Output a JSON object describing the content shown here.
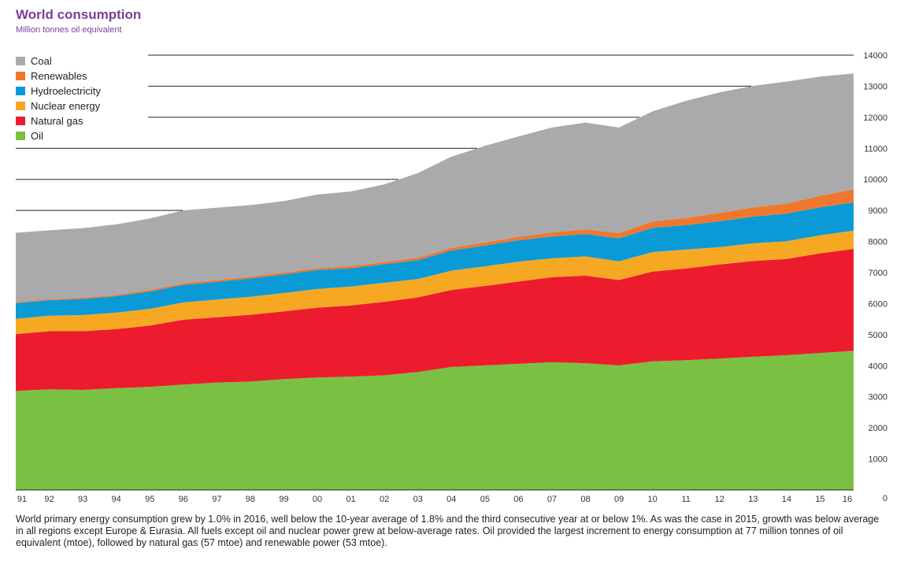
{
  "title": "World consumption",
  "subtitle": "Million tonnes oil equivalent",
  "caption": "World primary energy consumption grew by 1.0% in 2016, well below the 10-year average of 1.8% and the third consecutive year at or below 1%. As was the case in 2015, growth was below average in all regions except Europe & Eurasia. All fuels except oil and nuclear power grew at below-average rates. Oil provided the largest increment to energy consumption at 77 million tonnes of oil equivalent (mtoe), followed by natural gas (57 mtoe) and renewable power (53 mtoe).",
  "chart_data": {
    "type": "area",
    "stacked": true,
    "x": [
      "91",
      "92",
      "93",
      "94",
      "95",
      "96",
      "97",
      "98",
      "99",
      "00",
      "01",
      "02",
      "03",
      "04",
      "05",
      "06",
      "07",
      "08",
      "09",
      "10",
      "11",
      "12",
      "13",
      "14",
      "15",
      "16"
    ],
    "y_ticks": [
      "0",
      "1000",
      "2000",
      "3000",
      "4000",
      "5000",
      "6000",
      "7000",
      "8000",
      "9000",
      "10000",
      "11000",
      "12000",
      "13000",
      "14000"
    ],
    "ylim": [
      0,
      14000
    ],
    "y_axis_side": "right",
    "legend_position": "top-left",
    "series": [
      {
        "name": "Oil",
        "color": "#7ac143",
        "values": [
          3190,
          3240,
          3220,
          3280,
          3320,
          3390,
          3460,
          3490,
          3570,
          3620,
          3650,
          3690,
          3800,
          3960,
          4010,
          4060,
          4110,
          4080,
          4010,
          4140,
          4180,
          4230,
          4290,
          4340,
          4410,
          4480
        ]
      },
      {
        "name": "Natural gas",
        "color": "#ec1c2e",
        "values": [
          1830,
          1870,
          1890,
          1900,
          1970,
          2090,
          2100,
          2150,
          2180,
          2250,
          2290,
          2370,
          2400,
          2480,
          2560,
          2650,
          2740,
          2820,
          2750,
          2890,
          2950,
          3030,
          3080,
          3100,
          3210,
          3280
        ]
      },
      {
        "name": "Nuclear energy",
        "color": "#f7a823",
        "values": [
          490,
          500,
          520,
          530,
          540,
          560,
          570,
          580,
          590,
          600,
          610,
          610,
          590,
          620,
          630,
          640,
          610,
          620,
          600,
          630,
          610,
          560,
          570,
          570,
          580,
          590
        ]
      },
      {
        "name": "Hydroelectricity",
        "color": "#0a9bd7",
        "values": [
          500,
          500,
          520,
          530,
          560,
          560,
          570,
          590,
          600,
          610,
          590,
          600,
          610,
          650,
          670,
          690,
          700,
          720,
          740,
          780,
          790,
          830,
          860,
          890,
          900,
          910
        ]
      },
      {
        "name": "Renewables",
        "color": "#f0782e",
        "values": [
          30,
          30,
          40,
          40,
          50,
          50,
          60,
          60,
          60,
          60,
          70,
          70,
          80,
          90,
          100,
          110,
          130,
          150,
          170,
          200,
          230,
          270,
          300,
          320,
          370,
          420
        ]
      },
      {
        "name": "Coal",
        "color": "#aaaaad",
        "values": [
          2240,
          2220,
          2240,
          2270,
          2300,
          2350,
          2330,
          2300,
          2300,
          2370,
          2400,
          2500,
          2720,
          2930,
          3110,
          3230,
          3380,
          3440,
          3400,
          3550,
          3770,
          3880,
          3910,
          3930,
          3840,
          3730
        ]
      }
    ]
  }
}
